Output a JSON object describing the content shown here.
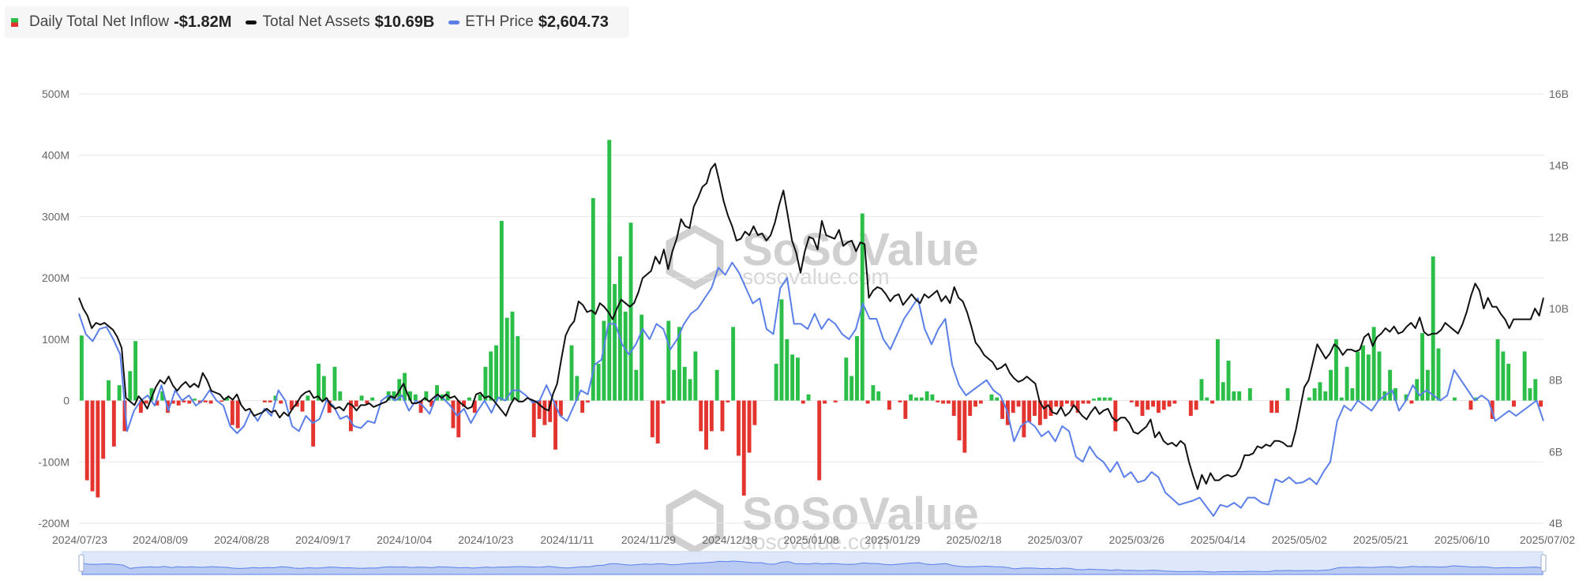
{
  "legend": {
    "inflow": {
      "label": "Daily Total Net Inflow",
      "value": "-$1.82M",
      "color_pos": "#2bbf49",
      "color_neg": "#e3342f"
    },
    "assets": {
      "label": "Total Net Assets",
      "value": "$10.69B",
      "color": "#111111"
    },
    "price": {
      "label": "ETH Price",
      "value": "$2,604.73",
      "color": "#5b7fe8"
    }
  },
  "watermark": {
    "brand": "SoSoValue",
    "url": "sosovalue.com"
  },
  "chart_data": {
    "type": "bar",
    "title": "",
    "x_tick_labels": [
      "2024/07/23",
      "2024/08/09",
      "2024/08/28",
      "2024/09/17",
      "2024/10/04",
      "2024/10/23",
      "2024/11/11",
      "2024/11/29",
      "2024/12/18",
      "2025/01/08",
      "2025/01/29",
      "2025/02/18",
      "2025/03/07",
      "2025/03/26",
      "2025/04/14",
      "2025/05/02",
      "2025/05/21",
      "2025/06/10",
      "2025/07/02"
    ],
    "left_axis": {
      "label": "",
      "ticks": [
        "-200M",
        "-100M",
        "0",
        "100M",
        "200M",
        "300M",
        "400M",
        "500M"
      ],
      "range": [
        -200,
        500
      ],
      "unit": "M USD"
    },
    "right_axis": {
      "label": "",
      "ticks": [
        "4B",
        "6B",
        "8B",
        "10B",
        "12B",
        "14B",
        "16B"
      ],
      "range": [
        4,
        16
      ],
      "unit": "B USD"
    },
    "series": [
      {
        "name": "Daily Total Net Inflow",
        "type": "bar",
        "unit": "M USD",
        "values": [
          106,
          -130,
          -148,
          -158,
          -95,
          33,
          -75,
          25,
          -50,
          48,
          97,
          -20,
          -5,
          20,
          -8,
          15,
          -20,
          -5,
          -8,
          -3,
          -5,
          3,
          -4,
          -3,
          -5,
          0,
          -2,
          5,
          -40,
          -45,
          0,
          0,
          0,
          0,
          -3,
          -3,
          8,
          -5,
          0,
          -15,
          -10,
          -18,
          8,
          -75,
          60,
          40,
          -20,
          55,
          15,
          0,
          -50,
          -10,
          8,
          -5,
          5,
          0,
          0,
          15,
          15,
          35,
          45,
          15,
          10,
          -20,
          15,
          -10,
          25,
          10,
          15,
          -45,
          -60,
          -10,
          5,
          -20,
          10,
          55,
          80,
          90,
          293,
          135,
          145,
          105,
          0,
          0,
          -60,
          -30,
          -40,
          -35,
          -80,
          -25,
          0,
          90,
          40,
          -20,
          -3,
          330,
          60,
          130,
          425,
          190,
          235,
          145,
          290,
          50,
          140,
          0,
          -60,
          -70,
          -5,
          130,
          50,
          120,
          55,
          35,
          80,
          -50,
          -80,
          -50,
          50,
          -50,
          -3,
          120,
          -90,
          -155,
          -85,
          -40,
          0,
          0,
          0,
          60,
          165,
          100,
          75,
          70,
          -5,
          10,
          0,
          -130,
          -5,
          0,
          -3,
          0,
          70,
          40,
          105,
          305,
          -5,
          25,
          15,
          0,
          -15,
          0,
          -3,
          -30,
          10,
          5,
          5,
          15,
          10,
          -3,
          -5,
          -5,
          -25,
          -65,
          -85,
          -25,
          -10,
          -5,
          0,
          10,
          5,
          -30,
          -40,
          -20,
          -10,
          -60,
          -35,
          -25,
          -40,
          -30,
          -25,
          -10,
          -10,
          -5,
          -10,
          -20,
          -5,
          -5,
          3,
          5,
          5,
          5,
          -50,
          0,
          0,
          -3,
          -10,
          -25,
          -15,
          -10,
          -20,
          -15,
          -10,
          -5,
          0,
          0,
          -25,
          -15,
          35,
          5,
          -5,
          100,
          30,
          65,
          15,
          15,
          0,
          20,
          0,
          0,
          0,
          -20,
          -20,
          0,
          20,
          0,
          0,
          0,
          5,
          20,
          30,
          15,
          50,
          100,
          5,
          55,
          20,
          80,
          90,
          75,
          120,
          80,
          15,
          50,
          20,
          0,
          10,
          -5,
          35,
          110,
          50,
          235,
          85,
          0,
          0,
          5,
          0,
          0,
          -15,
          5,
          0,
          0,
          -30,
          100,
          80,
          60,
          -10,
          0,
          80,
          20,
          35,
          -10
        ]
      },
      {
        "name": "Total Net Assets",
        "type": "line",
        "unit": "B USD",
        "values": [
          10.3,
          10.0,
          9.8,
          9.45,
          9.6,
          9.55,
          9.6,
          9.5,
          9.4,
          9.2,
          8.9,
          7.5,
          7.4,
          7.3,
          7.55,
          7.4,
          7.2,
          7.5,
          7.8,
          8.0,
          7.9,
          8.1,
          7.85,
          7.7,
          7.85,
          7.95,
          7.8,
          7.9,
          7.8,
          8.2,
          8.0,
          7.7,
          7.65,
          7.6,
          7.45,
          7.55,
          7.45,
          7.6,
          7.3,
          7.15,
          7.2,
          7.0,
          7.05,
          7.1,
          7.2,
          7.1,
          7.15,
          6.95,
          7.1,
          7.0,
          7.2,
          7.35,
          7.55,
          7.65,
          7.7,
          7.5,
          7.55,
          7.4,
          7.5,
          7.3,
          7.2,
          7.25,
          7.15,
          7.35,
          7.3,
          7.15,
          7.3,
          7.3,
          7.35,
          7.25,
          7.3,
          7.35,
          7.4,
          7.55,
          7.5,
          7.7,
          7.9,
          7.6,
          7.35,
          7.35,
          7.4,
          7.5,
          7.4,
          7.5,
          7.6,
          7.5,
          7.6,
          7.5,
          7.55,
          7.4,
          7.3,
          7.2,
          7.25,
          7.6,
          7.65,
          7.5,
          7.55,
          7.45,
          7.3,
          7.15,
          7.0,
          7.3,
          7.5,
          7.4,
          7.4,
          7.5,
          7.45,
          7.4,
          7.3,
          7.2,
          7.15,
          7.6,
          7.9,
          8.6,
          9.25,
          9.5,
          9.65,
          10.2,
          10.1,
          9.9,
          9.95,
          9.85,
          10.15,
          10.05,
          9.9,
          9.7,
          10.0,
          10.25,
          10.15,
          10.05,
          10.15,
          10.45,
          10.85,
          10.95,
          11.05,
          11.45,
          11.25,
          11.65,
          11.1,
          11.6,
          11.95,
          12.5,
          12.3,
          12.25,
          12.85,
          13.1,
          13.4,
          13.5,
          13.9,
          14.05,
          13.55,
          13.0,
          12.6,
          12.3,
          11.9,
          11.95,
          12.15,
          12.05,
          12.3,
          12.05,
          12.1,
          11.9,
          12.05,
          12.4,
          12.9,
          13.3,
          12.6,
          11.9,
          11.55,
          11.0,
          11.6,
          12.0,
          11.95,
          11.65,
          12.45,
          12.05,
          12.0,
          11.95,
          12.2,
          11.75,
          11.85,
          11.9,
          11.6,
          11.85,
          11.8,
          10.3,
          10.5,
          10.6,
          10.55,
          10.4,
          10.2,
          10.35,
          10.4,
          10.1,
          10.25,
          10.4,
          10.25,
          10.15,
          10.4,
          10.3,
          10.4,
          10.5,
          10.2,
          10.35,
          10.15,
          10.6,
          10.3,
          10.2,
          9.9,
          9.5,
          9.05,
          8.9,
          8.7,
          8.6,
          8.5,
          8.3,
          8.35,
          8.45,
          8.2,
          8.05,
          7.95,
          8.0,
          8.1,
          8.0,
          7.9,
          7.4,
          7.2,
          7.3,
          7.1,
          7.05,
          7.25,
          7.0,
          7.1,
          7.3,
          7.15,
          7.0,
          6.9,
          7.1,
          7.25,
          7.05,
          7.15,
          7.2,
          6.95,
          6.85,
          6.95,
          6.95,
          6.8,
          6.55,
          6.5,
          6.6,
          6.7,
          6.9,
          6.4,
          6.55,
          6.3,
          6.2,
          6.25,
          6.15,
          6.3,
          6.2,
          5.7,
          5.3,
          4.95,
          5.35,
          5.1,
          5.4,
          5.2,
          5.2,
          5.3,
          5.35,
          5.3,
          5.35,
          5.55,
          5.9,
          5.9,
          5.95,
          6.15,
          6.1,
          6.2,
          6.15,
          6.3,
          6.3,
          6.25,
          6.15,
          6.15,
          6.6,
          7.2,
          7.8,
          8.0,
          8.5,
          9.0,
          8.8,
          8.6,
          8.75,
          9.0,
          8.9,
          8.7,
          8.85,
          8.85,
          8.8,
          8.85,
          9.2,
          9.3,
          8.95,
          9.2,
          9.3,
          9.45,
          9.35,
          9.5,
          9.3,
          9.35,
          9.5,
          9.6,
          9.45,
          9.75,
          9.35,
          9.25,
          9.3,
          9.3,
          9.4,
          9.6,
          9.5,
          9.4,
          9.3,
          9.55,
          9.9,
          10.35,
          10.7,
          10.5,
          10.0,
          10.3,
          10.05,
          10.05,
          9.85,
          9.7,
          9.45,
          9.7,
          9.7,
          9.7,
          9.7,
          9.7,
          10.0,
          9.8,
          10.3
        ]
      },
      {
        "name": "ETH Price",
        "type": "line",
        "unit": "USD",
        "values": [
          3450,
          3250,
          3180,
          3300,
          3320,
          3200,
          3050,
          2300,
          2500,
          2600,
          2650,
          2550,
          2750,
          2500,
          2700,
          2600,
          2650,
          2550,
          2600,
          2700,
          2600,
          2550,
          2350,
          2280,
          2350,
          2500,
          2400,
          2520,
          2450,
          2700,
          2600,
          2350,
          2300,
          2450,
          2380,
          2420,
          2600,
          2550,
          2420,
          2450,
          2350,
          2330,
          2400,
          2380,
          2600,
          2650,
          2600,
          2650,
          2500,
          2600,
          2550,
          2470,
          2650,
          2620,
          2550,
          2450,
          2520,
          2380,
          2500,
          2600,
          2480,
          2630,
          2600,
          2700,
          2700,
          2650,
          2580,
          2600,
          2750,
          2600,
          2450,
          2400,
          2550,
          2700,
          2660,
          2950,
          3000,
          3350,
          3350,
          3150,
          3050,
          3150,
          3300,
          3200,
          3350,
          3300,
          3100,
          3200,
          3350,
          3450,
          3500,
          3600,
          3700,
          3900,
          3830,
          3950,
          3850,
          3700,
          3550,
          3600,
          3300,
          3250,
          3700,
          3800,
          3350,
          3350,
          3300,
          3450,
          3300,
          3400,
          3350,
          3250,
          3200,
          3300,
          3550,
          3400,
          3400,
          3200,
          3100,
          3250,
          3400,
          3500,
          3600,
          3300,
          3150,
          3300,
          3400,
          2950,
          2750,
          2650,
          2700,
          2750,
          2800,
          2700,
          2650,
          2500,
          2200,
          2350,
          2400,
          2350,
          2250,
          2300,
          2200,
          2350,
          2300,
          2050,
          2000,
          2150,
          2050,
          2000,
          1900,
          2000,
          1850,
          1900,
          1800,
          1820,
          1900,
          1850,
          1700,
          1640,
          1580,
          1600,
          1620,
          1650,
          1560,
          1470,
          1580,
          1560,
          1600,
          1550,
          1650,
          1650,
          1600,
          1580,
          1830,
          1800,
          1850,
          1790,
          1800,
          1840,
          1780,
          1900,
          2000,
          2400,
          2550,
          2500,
          2600,
          2550,
          2500,
          2600,
          2650,
          2700,
          2500,
          2600,
          2750,
          2650,
          2700,
          2650,
          2600,
          2650,
          2900,
          2800,
          2700,
          2600,
          2650,
          2600,
          2400,
          2450,
          2500,
          2450,
          2500,
          2550,
          2600,
          2400
        ]
      }
    ],
    "grid": "horizontal",
    "legend_position": "top-left",
    "brush": true
  }
}
